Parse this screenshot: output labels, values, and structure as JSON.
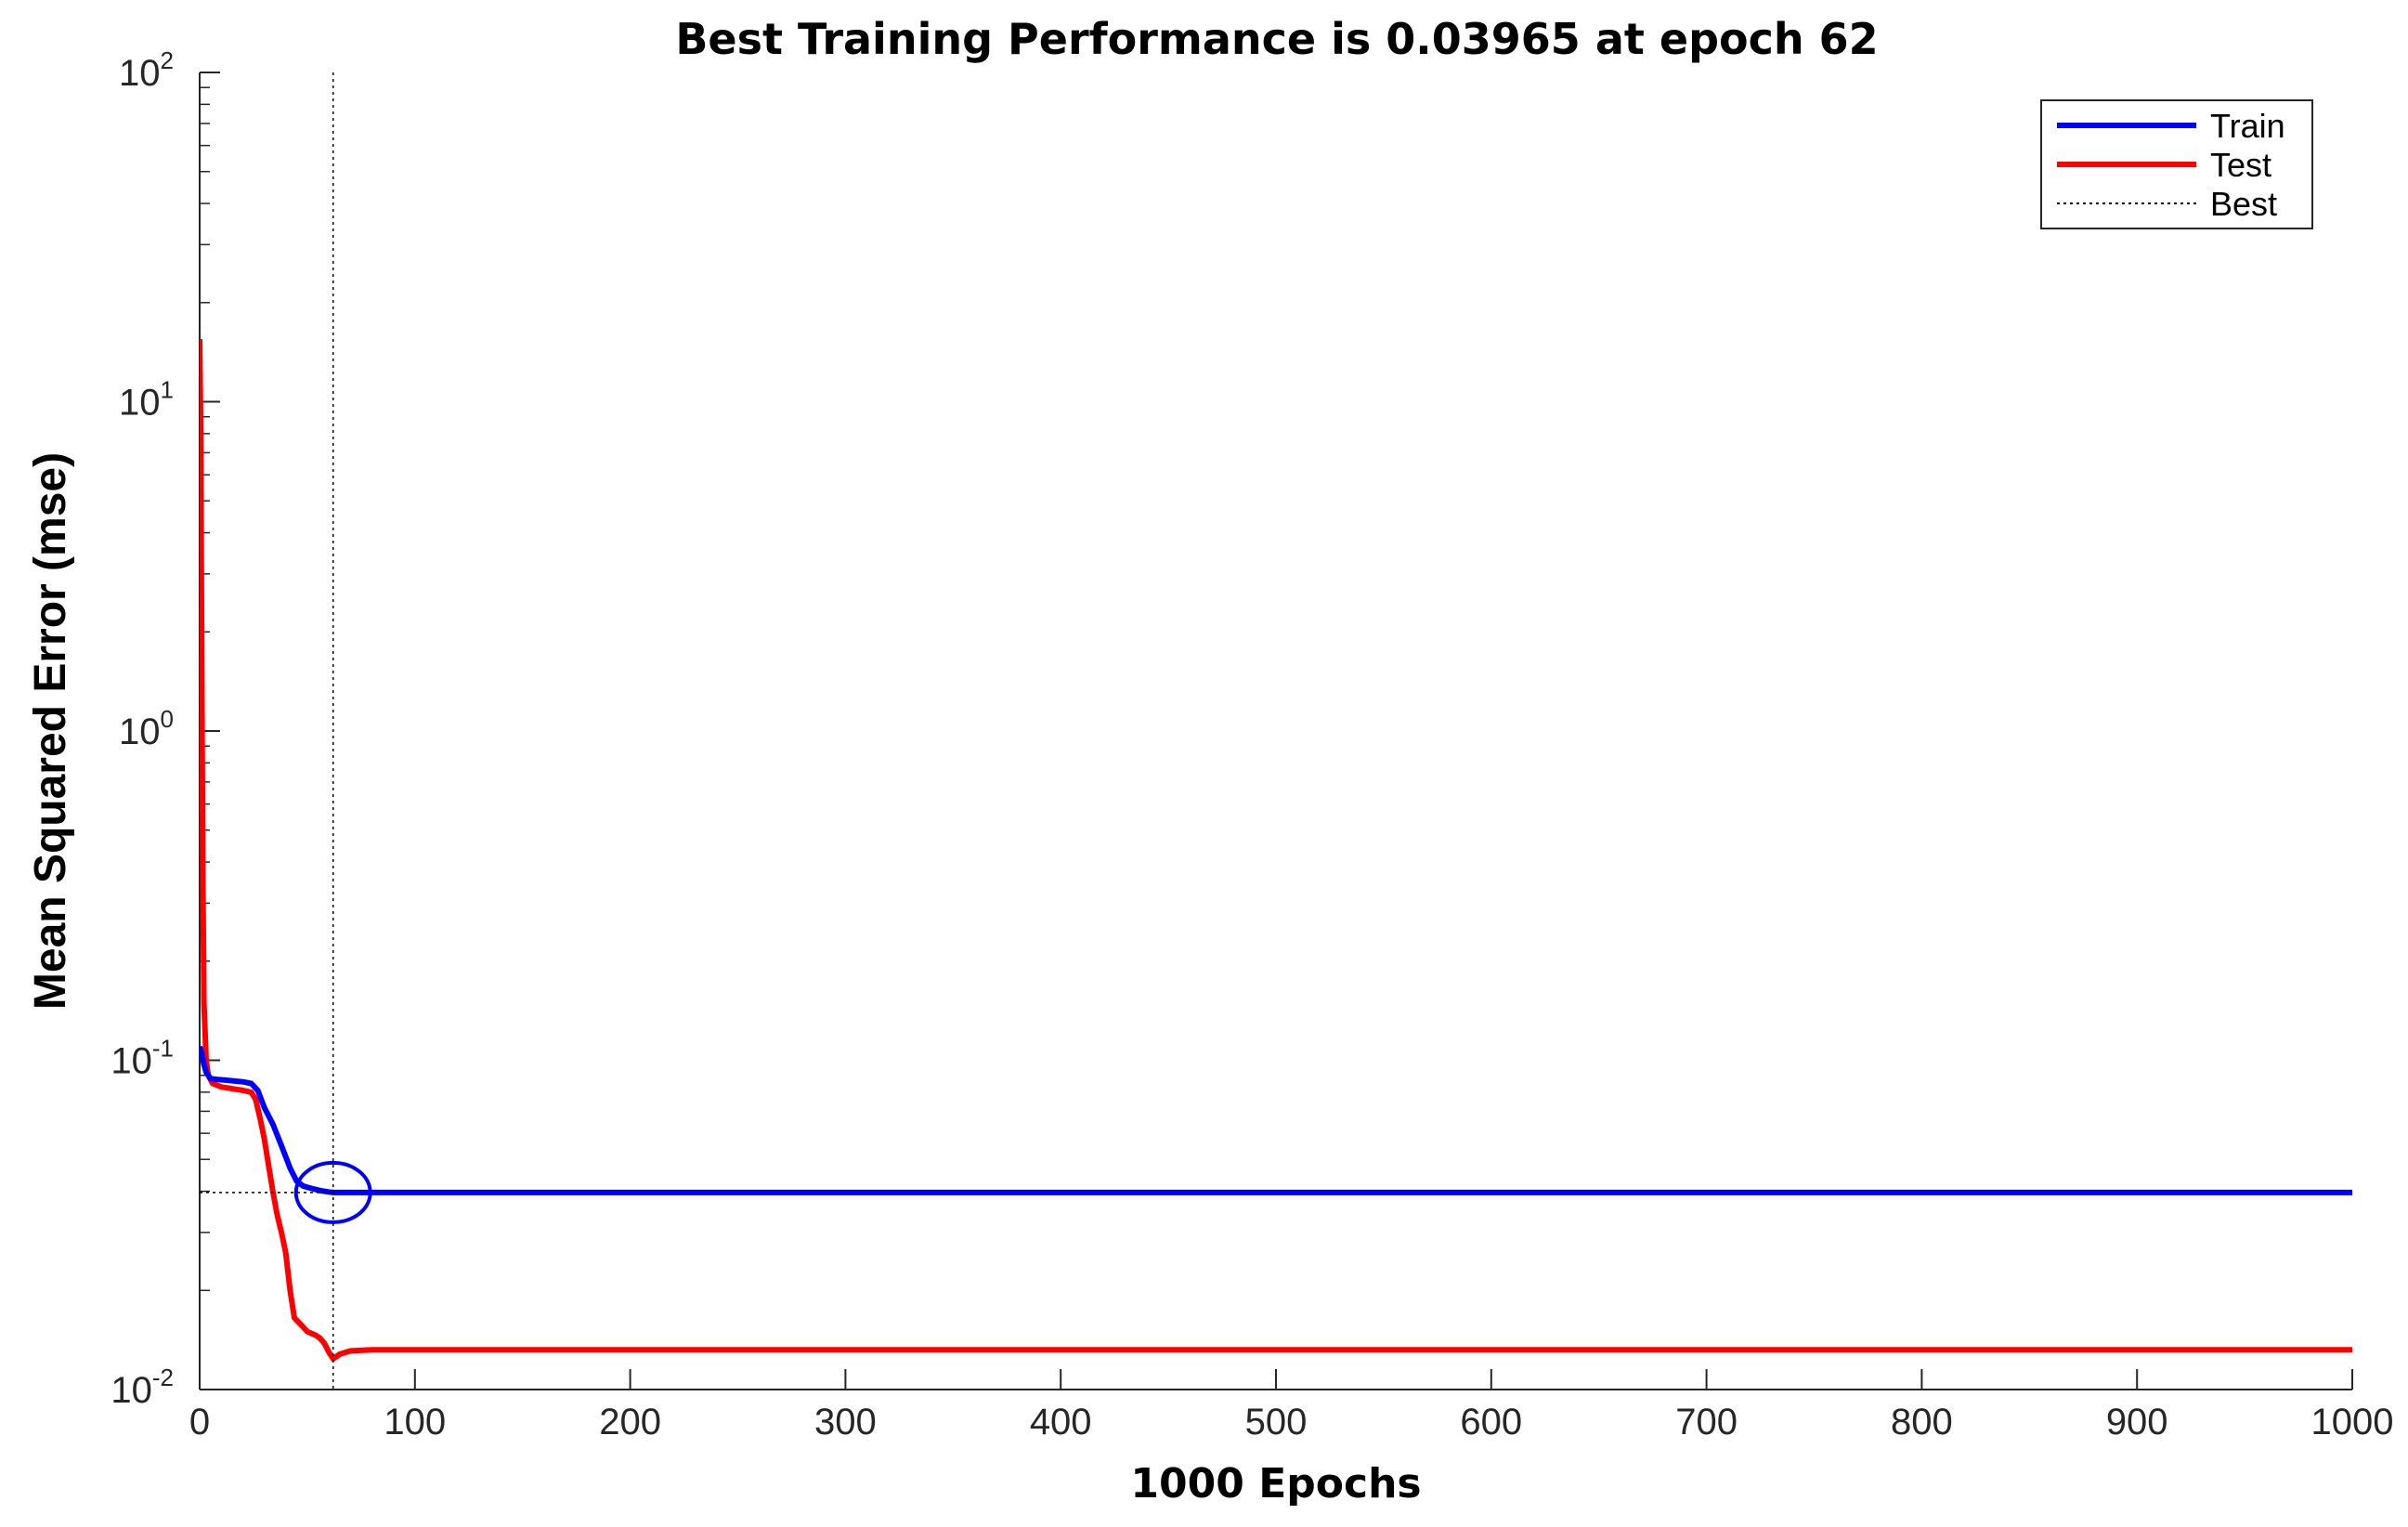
{
  "chart_data": {
    "type": "line",
    "title": "Best Training Performance is 0.03965 at epoch 62",
    "xlabel": "1000 Epochs",
    "ylabel": "Mean Squared Error  (mse)",
    "xlim": [
      0,
      1000
    ],
    "ylim": [
      0.01,
      100
    ],
    "yscale": "log",
    "x_ticks": [
      0,
      100,
      200,
      300,
      400,
      500,
      600,
      700,
      800,
      900,
      1000
    ],
    "y_ticks": [
      {
        "base": "10",
        "exp": "-2",
        "value": 0.01
      },
      {
        "base": "10",
        "exp": "-1",
        "value": 0.1
      },
      {
        "base": "10",
        "exp": "0",
        "value": 1
      },
      {
        "base": "10",
        "exp": "1",
        "value": 10
      },
      {
        "base": "10",
        "exp": "2",
        "value": 100
      }
    ],
    "grid": false,
    "legend_position": "top-right",
    "series": [
      {
        "name": "Train",
        "color": "#0000ff",
        "x": [
          0,
          1,
          2,
          3,
          5,
          8,
          12,
          16,
          20,
          24,
          27,
          30,
          34,
          38,
          42,
          45,
          48,
          52,
          56,
          60,
          62,
          70,
          80,
          100,
          200,
          400,
          600,
          800,
          1000
        ],
        "y": [
          0.11,
          0.105,
          0.097,
          0.092,
          0.088,
          0.0875,
          0.087,
          0.0865,
          0.086,
          0.085,
          0.081,
          0.072,
          0.064,
          0.055,
          0.047,
          0.043,
          0.0415,
          0.0408,
          0.0402,
          0.0398,
          0.03965,
          0.03965,
          0.03965,
          0.03965,
          0.03965,
          0.03965,
          0.03965,
          0.03965,
          0.03965
        ]
      },
      {
        "name": "Test",
        "color": "#ff0000",
        "x": [
          0,
          0.5,
          1,
          1.5,
          2,
          3,
          4,
          6,
          10,
          15,
          20,
          24,
          26,
          28,
          30,
          32,
          34,
          36,
          38,
          40,
          42,
          44,
          46,
          48,
          50,
          52,
          54,
          56,
          58,
          60,
          62,
          65,
          70,
          80,
          100,
          200,
          400,
          600,
          800,
          1000
        ],
        "y": [
          15.5,
          8,
          1.5,
          0.35,
          0.15,
          0.1,
          0.09,
          0.085,
          0.083,
          0.082,
          0.081,
          0.08,
          0.076,
          0.067,
          0.058,
          0.048,
          0.04,
          0.034,
          0.03,
          0.026,
          0.02,
          0.0165,
          0.016,
          0.0155,
          0.015,
          0.0148,
          0.0146,
          0.0143,
          0.0138,
          0.013,
          0.0124,
          0.0128,
          0.0131,
          0.0132,
          0.0132,
          0.0132,
          0.0132,
          0.0132,
          0.0132,
          0.0132
        ]
      }
    ],
    "best": {
      "name": "Best",
      "epoch": 62,
      "value": 0.03965,
      "color": "#000000"
    }
  }
}
